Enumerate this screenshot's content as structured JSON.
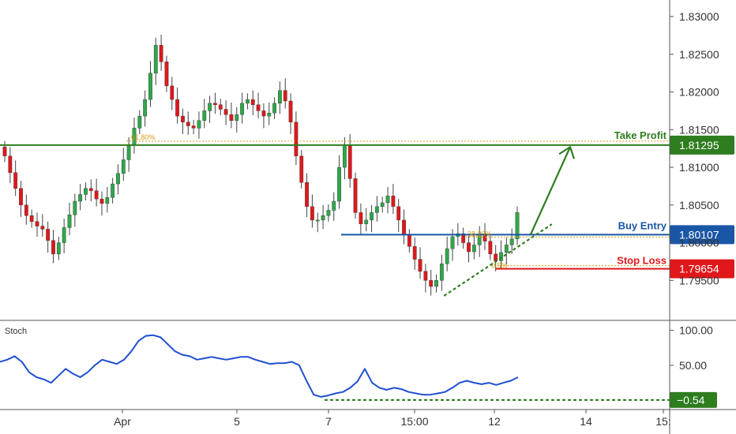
{
  "chart_data": {
    "type": "line",
    "price_axis": {
      "ticks": [
        "1.83000",
        "1.82500",
        "1.82000",
        "1.81500",
        "1.81000",
        "1.80500",
        "1.80000",
        "1.79500"
      ],
      "range": [
        1.7898,
        1.8322
      ]
    },
    "time_axis": {
      "ticks": [
        "Apr",
        "5",
        "7",
        "15:00",
        "12",
        "14",
        "15:"
      ]
    },
    "levels": [
      {
        "name": "Take Profit",
        "value": "1.81295",
        "color": "#2e7d1f"
      },
      {
        "name": "Buy Entry",
        "value": "1.80107",
        "color": "#1a56a6"
      },
      {
        "name": "Stop Loss",
        "value": "1.79654",
        "color": "#e0181b"
      }
    ],
    "fib_labels": [
      "61.80%",
      "38.20%",
      "0.5%"
    ],
    "price_series": [
      1.8115,
      1.8093,
      1.8072,
      1.805,
      1.8036,
      1.8028,
      1.8022,
      1.8018,
      1.8003,
      1.7985,
      1.8,
      1.802,
      1.8037,
      1.8055,
      1.8064,
      1.8072,
      1.8069,
      1.8058,
      1.8052,
      1.806,
      1.8078,
      1.8092,
      1.811,
      1.813,
      1.8152,
      1.8168,
      1.819,
      1.8225,
      1.8262,
      1.824,
      1.8208,
      1.819,
      1.8168,
      1.816,
      1.8155,
      1.8152,
      1.8162,
      1.8175,
      1.8185,
      1.8183,
      1.8177,
      1.817,
      1.8162,
      1.817,
      1.8185,
      1.819,
      1.8183,
      1.8175,
      1.8168,
      1.8172,
      1.8185,
      1.8202,
      1.8188,
      1.816,
      1.8115,
      1.808,
      1.8048,
      1.803,
      1.803,
      1.8036,
      1.8043,
      1.8055,
      1.81,
      1.813,
      1.8085,
      1.804,
      1.8025,
      1.803,
      1.804,
      1.8048,
      1.8053,
      1.8062,
      1.8048,
      1.803,
      1.801,
      1.7995,
      1.7978,
      1.7962,
      1.795,
      1.7942,
      1.795,
      1.7972,
      1.7992,
      1.8008,
      1.8012,
      1.8,
      1.7988,
      1.7997,
      1.8012,
      1.8002,
      1.7985,
      1.7976,
      1.7987,
      1.7997,
      1.8005,
      1.804
    ],
    "projection": {
      "from": 1.8011,
      "to": 1.8127
    },
    "trendline": {
      "from": 1.793,
      "to": 1.8024
    },
    "stoch": {
      "title": "Stoch",
      "ticks": [
        "100.00",
        "50.00"
      ],
      "current": "0.54",
      "range": [
        0,
        100
      ],
      "values": [
        55,
        58,
        63,
        55,
        40,
        33,
        30,
        25,
        35,
        45,
        38,
        33,
        40,
        50,
        58,
        55,
        52,
        58,
        70,
        85,
        92,
        93,
        90,
        80,
        70,
        65,
        63,
        58,
        60,
        62,
        60,
        58,
        60,
        62,
        62,
        58,
        55,
        52,
        53,
        53,
        55,
        50,
        28,
        8,
        5,
        7,
        10,
        12,
        18,
        27,
        45,
        25,
        18,
        15,
        18,
        16,
        12,
        10,
        8,
        8,
        10,
        12,
        18,
        25,
        28,
        25,
        23,
        25,
        22,
        25,
        28,
        33
      ]
    }
  }
}
